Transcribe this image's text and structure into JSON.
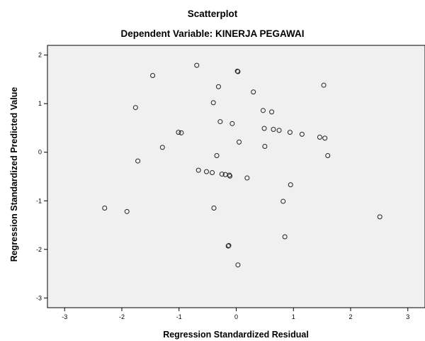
{
  "chart_data": {
    "type": "scatter",
    "title": "Scatterplot",
    "subtitle": "Dependent Variable: KINERJA PEGAWAI",
    "xlabel": "Regression Standardized Residual",
    "ylabel": "Regression Standardized Predicted Value",
    "xlim": [
      -3.3,
      3.3
    ],
    "ylim": [
      -3.2,
      2.2
    ],
    "xticks": [
      -3,
      -2,
      -1,
      0,
      1,
      2,
      3
    ],
    "yticks": [
      -3,
      -2,
      -1,
      0,
      1,
      2
    ],
    "grid": false,
    "legend": "none",
    "plot_background": "#f0f0f0",
    "point_color": "#222222",
    "points": [
      {
        "x": -2.3,
        "y": -1.15
      },
      {
        "x": -1.91,
        "y": -1.22
      },
      {
        "x": -1.76,
        "y": 0.92
      },
      {
        "x": -1.72,
        "y": -0.18
      },
      {
        "x": -1.46,
        "y": 1.58
      },
      {
        "x": -1.29,
        "y": 0.1
      },
      {
        "x": -1.01,
        "y": 0.41
      },
      {
        "x": -0.96,
        "y": 0.4
      },
      {
        "x": -0.69,
        "y": 1.79
      },
      {
        "x": -0.66,
        "y": -0.37
      },
      {
        "x": -0.52,
        "y": -0.4
      },
      {
        "x": -0.42,
        "y": -0.42
      },
      {
        "x": -0.4,
        "y": 1.02
      },
      {
        "x": -0.39,
        "y": -1.15
      },
      {
        "x": -0.34,
        "y": -0.07
      },
      {
        "x": -0.31,
        "y": 1.35
      },
      {
        "x": -0.28,
        "y": 0.63
      },
      {
        "x": -0.25,
        "y": -0.45
      },
      {
        "x": -0.19,
        "y": -0.46
      },
      {
        "x": -0.14,
        "y": -1.93
      },
      {
        "x": -0.13,
        "y": -1.92
      },
      {
        "x": -0.12,
        "y": -0.47
      },
      {
        "x": -0.11,
        "y": -0.49
      },
      {
        "x": -0.07,
        "y": 0.59
      },
      {
        "x": 0.02,
        "y": 1.67
      },
      {
        "x": 0.03,
        "y": 1.66
      },
      {
        "x": 0.03,
        "y": -2.32
      },
      {
        "x": 0.05,
        "y": 0.21
      },
      {
        "x": 0.19,
        "y": -0.53
      },
      {
        "x": 0.3,
        "y": 1.24
      },
      {
        "x": 0.47,
        "y": 0.86
      },
      {
        "x": 0.49,
        "y": 0.49
      },
      {
        "x": 0.5,
        "y": 0.12
      },
      {
        "x": 0.62,
        "y": 0.83
      },
      {
        "x": 0.65,
        "y": 0.47
      },
      {
        "x": 0.75,
        "y": 0.45
      },
      {
        "x": 0.82,
        "y": -1.01
      },
      {
        "x": 0.85,
        "y": -1.74
      },
      {
        "x": 0.94,
        "y": 0.41
      },
      {
        "x": 0.95,
        "y": -0.67
      },
      {
        "x": 1.15,
        "y": 0.37
      },
      {
        "x": 1.46,
        "y": 0.31
      },
      {
        "x": 1.53,
        "y": 1.38
      },
      {
        "x": 1.55,
        "y": 0.29
      },
      {
        "x": 1.6,
        "y": -0.07
      },
      {
        "x": 2.51,
        "y": -1.33
      }
    ]
  }
}
